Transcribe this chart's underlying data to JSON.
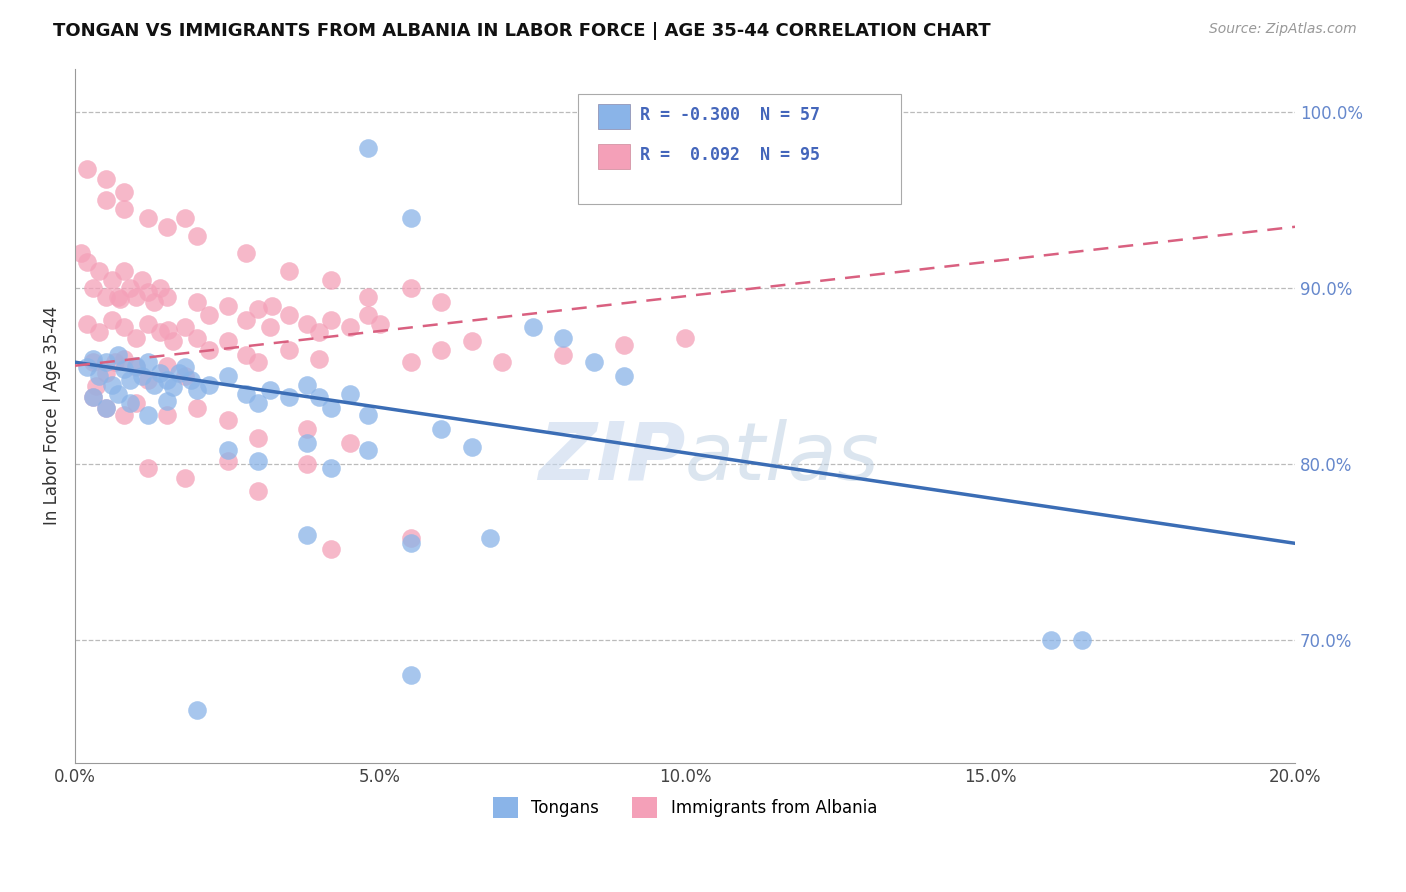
{
  "title": "TONGAN VS IMMIGRANTS FROM ALBANIA IN LABOR FORCE | AGE 35-44 CORRELATION CHART",
  "source": "Source: ZipAtlas.com",
  "ylabel": "In Labor Force | Age 35-44",
  "xlabel": "",
  "xlim": [
    0.0,
    0.2
  ],
  "ylim": [
    0.63,
    1.025
  ],
  "xticks": [
    0.0,
    0.05,
    0.1,
    0.15,
    0.2
  ],
  "xticklabels": [
    "0.0%",
    "5.0%",
    "10.0%",
    "15.0%",
    "20.0%"
  ],
  "yticks": [
    0.7,
    0.8,
    0.9,
    1.0
  ],
  "yticklabels": [
    "70.0%",
    "80.0%",
    "90.0%",
    "100.0%"
  ],
  "blue_R": -0.3,
  "blue_N": 57,
  "pink_R": 0.092,
  "pink_N": 95,
  "blue_color": "#8AB4E8",
  "pink_color": "#F4A0B8",
  "blue_line_color": "#3B6DB5",
  "pink_line_color": "#D96080",
  "watermark_zip": "ZIP",
  "watermark_atlas": "atlas",
  "legend_label_blue": "Tongans",
  "legend_label_pink": "Immigrants from Albania",
  "blue_trend_x0": 0.0,
  "blue_trend_y0": 0.858,
  "blue_trend_x1": 0.2,
  "blue_trend_y1": 0.755,
  "pink_trend_x0": 0.0,
  "pink_trend_y0": 0.856,
  "pink_trend_x1": 0.2,
  "pink_trend_y1": 0.935
}
